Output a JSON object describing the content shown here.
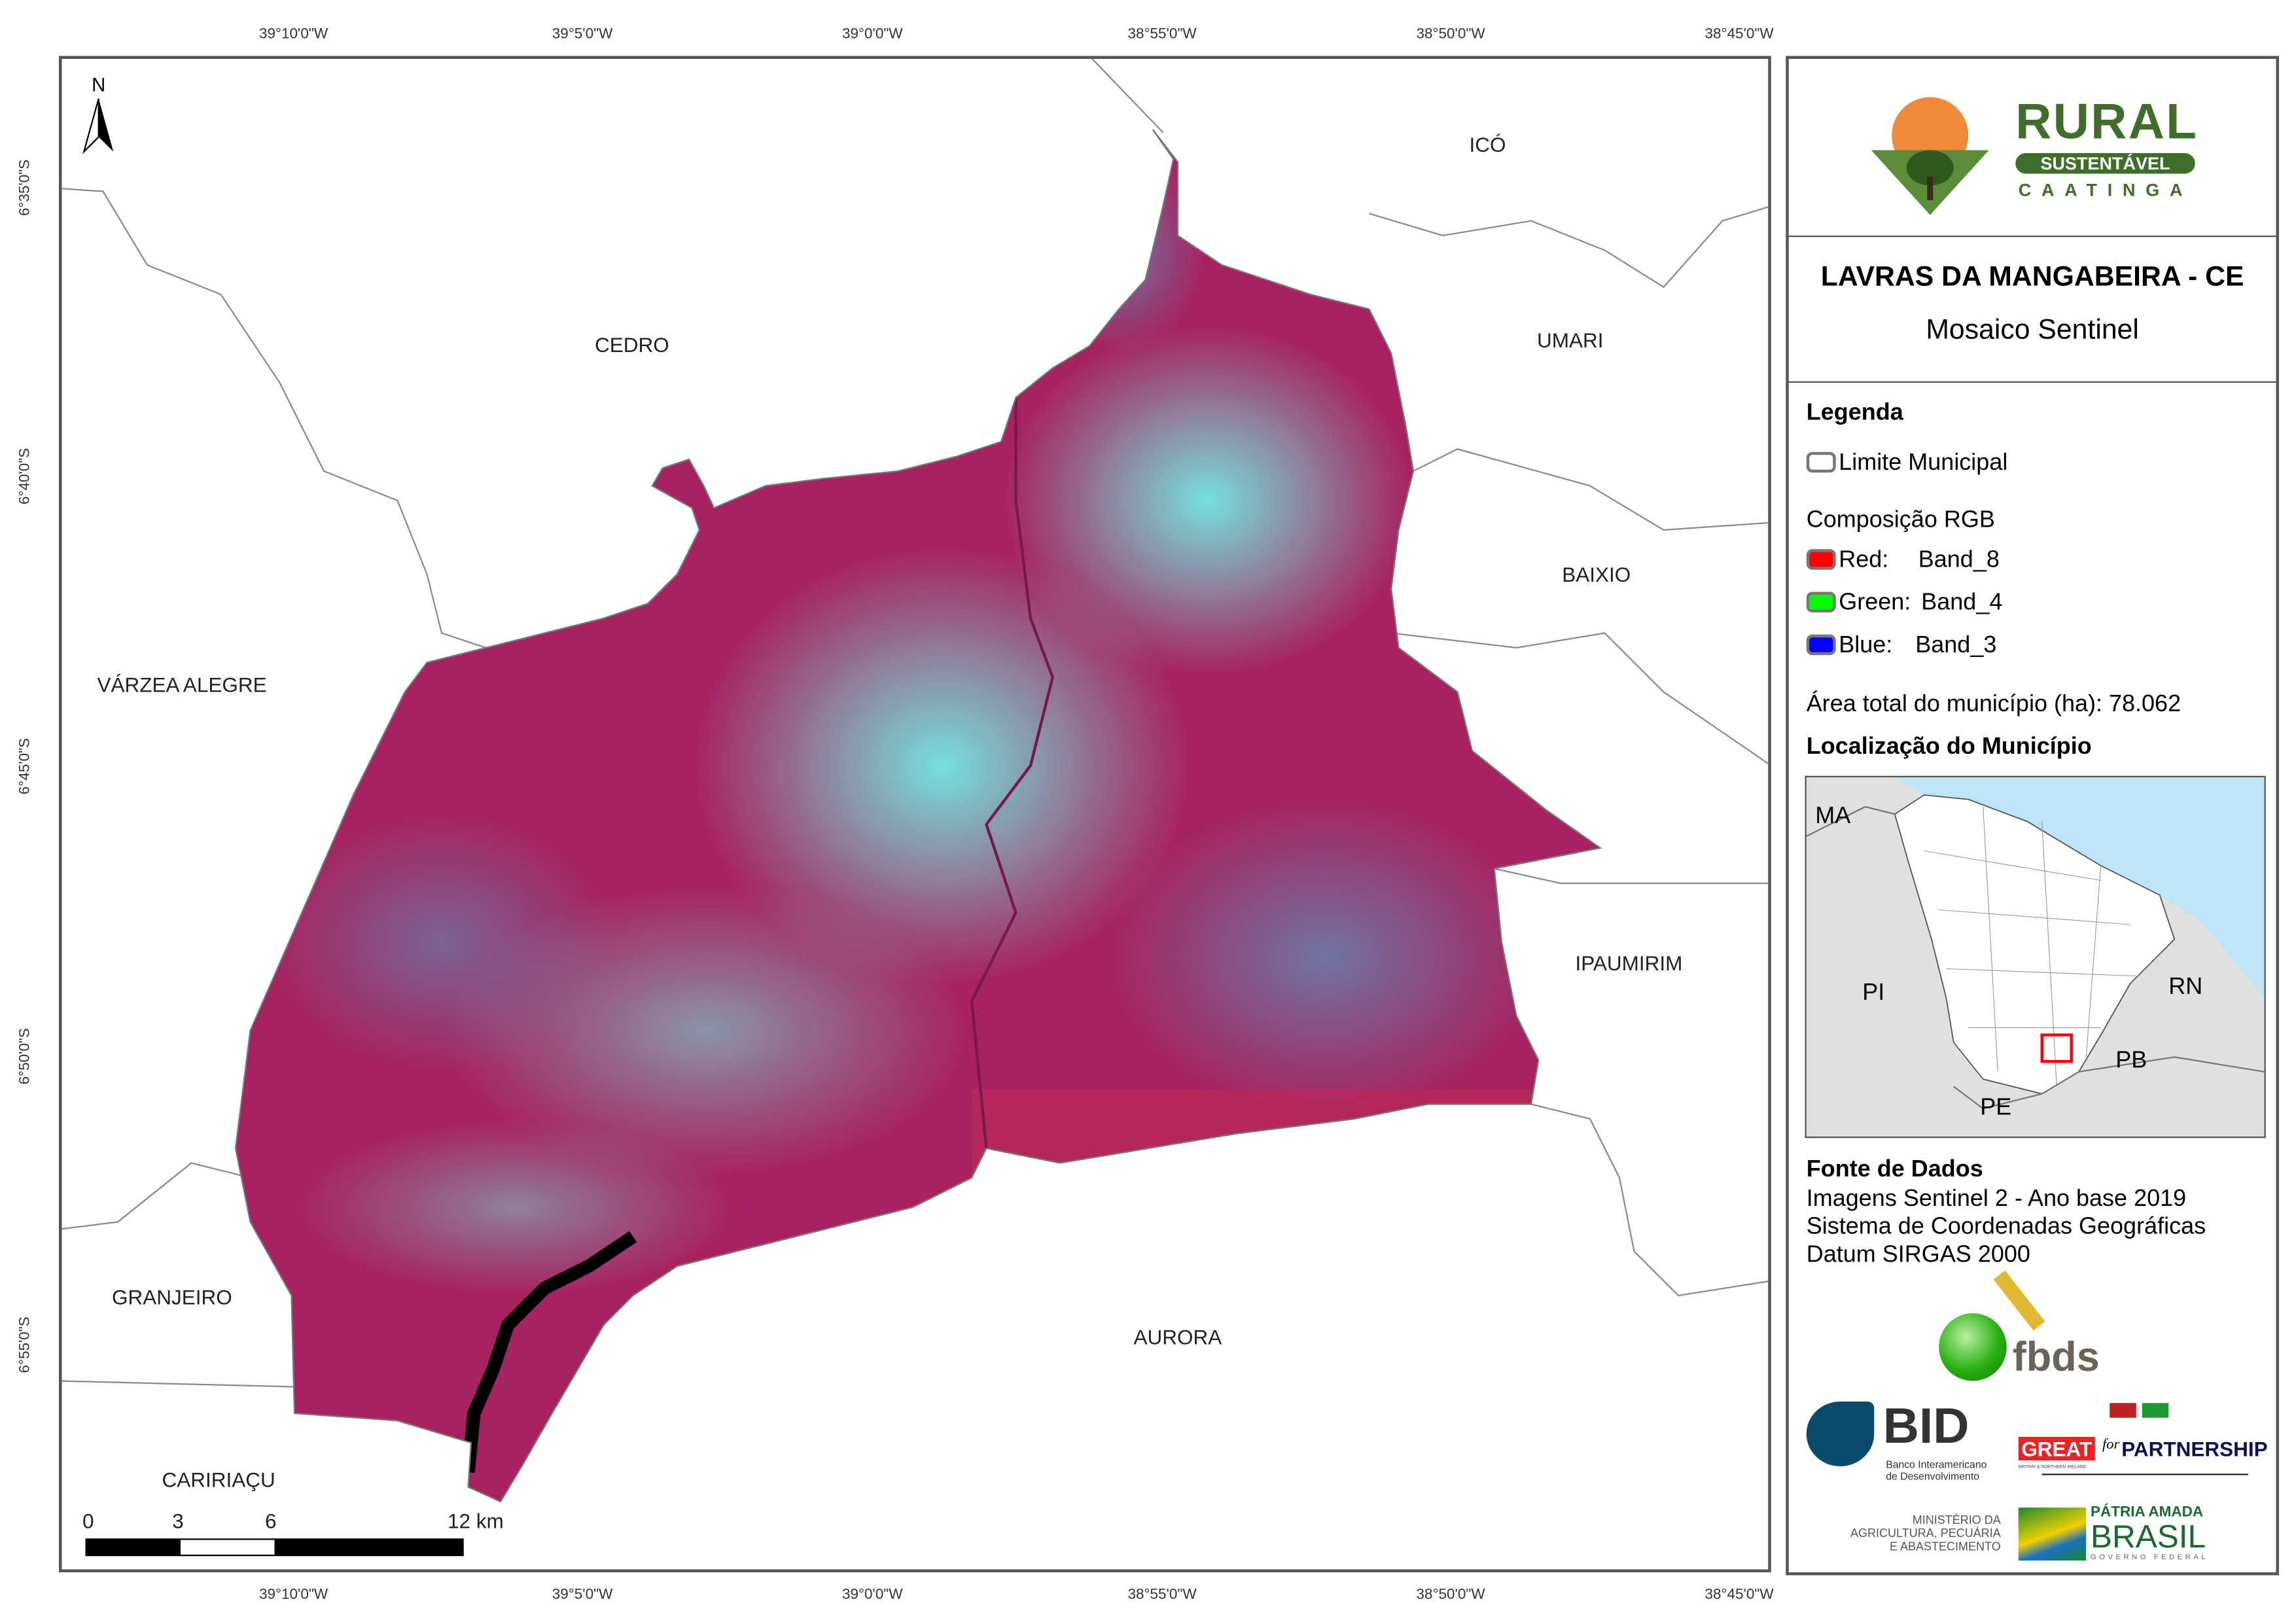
{
  "graticule": {
    "lon_labels": [
      "39°10'0\"W",
      "39°5'0\"W",
      "39°0'0\"W",
      "38°55'0\"W",
      "38°50'0\"W",
      "38°45'0\"W"
    ],
    "lat_labels": [
      "6°35'0\"S",
      "6°40'0\"S",
      "6°45'0\"S",
      "6°50'0\"S",
      "6°55'0\"S"
    ]
  },
  "map": {
    "north_label": "N",
    "neighbors": [
      "ICÓ",
      "CEDRO",
      "UMARI",
      "BAIXIO",
      "VÁRZEA ALEGRE",
      "IPAUMIRIM",
      "GRANJEIRO",
      "AURORA",
      "CARIRIAÇU"
    ],
    "scale_bar": {
      "labels": [
        "0",
        "3",
        "6",
        "12 km"
      ]
    },
    "colors": {
      "boundary": "#888888",
      "vegetation": "#b0205a",
      "bare_soil": "#5ff0e0",
      "water": "#000000"
    }
  },
  "panel": {
    "logo": {
      "line1": "RURAL",
      "line2": "SUSTENTÁVEL",
      "line3": "CAATINGA"
    },
    "title": "LAVRAS DA MANGABEIRA - CE",
    "subtitle": "Mosaico Sentinel",
    "legend": {
      "heading": "Legenda",
      "boundary": "Limite Municipal",
      "rgb_heading": "Composição RGB",
      "bands": [
        {
          "channel": "Red:",
          "band": "Band_8",
          "color": "#ff0000"
        },
        {
          "channel": "Green:",
          "band": "Band_4",
          "color": "#00ff00"
        },
        {
          "channel": "Blue:",
          "band": "Band_3",
          "color": "#0000ff"
        }
      ],
      "area": "Área total do município (ha): 78.062"
    },
    "location": {
      "heading": "Localização do Município",
      "labels": [
        "MA",
        "PI",
        "RN",
        "PB",
        "PE"
      ],
      "colors": {
        "sea": "#bfe3f7",
        "land": "#e0e0e0",
        "state": "#ffffff",
        "highlight": "#ff0000"
      }
    },
    "sources": {
      "heading": "Fonte de Dados",
      "lines": [
        "Imagens Sentinel 2 - Ano base 2019",
        "Sistema de Coordenadas Geográficas",
        "Datum SIRGAS 2000"
      ]
    },
    "partners": {
      "fbds": "fbds",
      "bid": "BID",
      "bid_sub": [
        "Banco Interamericano",
        "de Desenvolvimento"
      ],
      "great": "GREAT",
      "great_sub": "BRITAIN & NORTHERN IRELAND",
      "for": "for",
      "partnership": "PARTNERSHIP",
      "ministry": [
        "MINISTÉRIO DA",
        "AGRICULTURA, PECUÁRIA",
        "E ABASTECIMENTO"
      ],
      "brasil": [
        "PÁTRIA AMADA",
        "BRASIL",
        "GOVERNO FEDERAL"
      ]
    }
  }
}
